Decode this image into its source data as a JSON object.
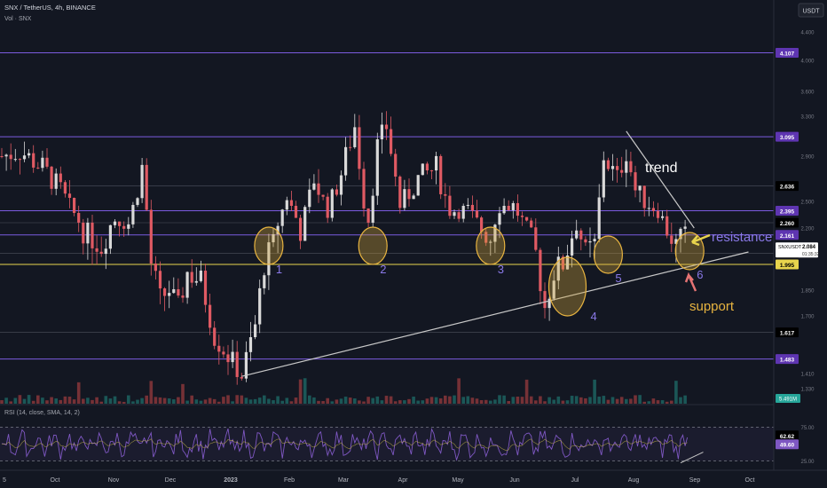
{
  "header": {
    "symbol": "SNX / TetherUS, 4h, BINANCE",
    "volume": "Vol · SNX",
    "currency": "USDT"
  },
  "colors": {
    "background": "#131722",
    "candle_up": "#d9d9d9",
    "candle_down": "#e05a63",
    "purple_line": "#7b5be0",
    "yellow_line": "#e8d44d",
    "trend_line": "#c8c8c8",
    "highlight": "#d4a73a",
    "rsi_line": "#7e57c2"
  },
  "chart_data": {
    "type": "candlestick",
    "ylim": [
      1.33,
      4.5
    ],
    "y_ticks": [
      "4.400",
      "4.000",
      "3.600",
      "3.300",
      "2.900",
      "2.500",
      "2.200",
      "1.850",
      "1.700",
      "1.410",
      "1.330"
    ],
    "x_ticks": [
      "5",
      "Oct",
      "Nov",
      "Dec",
      "2023",
      "Feb",
      "Mar",
      "Apr",
      "May",
      "Jun",
      "Jul",
      "Aug",
      "Sep",
      "Oct"
    ],
    "close_path": [
      [
        0,
        2.9
      ],
      [
        4,
        2.95
      ],
      [
        9,
        2.8
      ],
      [
        13,
        2.6
      ],
      [
        18,
        2.2
      ],
      [
        22,
        2.1
      ],
      [
        25,
        2.3
      ],
      [
        28,
        2.25
      ],
      [
        31,
        2.8
      ],
      [
        33,
        2.0
      ],
      [
        35,
        1.8
      ],
      [
        37,
        1.85
      ],
      [
        39,
        1.75
      ],
      [
        41,
        1.95
      ],
      [
        44,
        1.9
      ],
      [
        47,
        1.6
      ],
      [
        50,
        1.5
      ],
      [
        53,
        1.4
      ],
      [
        56,
        1.65
      ],
      [
        58,
        2.0
      ],
      [
        60,
        2.1
      ],
      [
        63,
        2.55
      ],
      [
        66,
        2.2
      ],
      [
        69,
        2.7
      ],
      [
        72,
        2.4
      ],
      [
        75,
        2.75
      ],
      [
        78,
        3.2
      ],
      [
        80,
        2.5
      ],
      [
        81,
        2.3
      ],
      [
        83,
        3.0
      ],
      [
        85,
        3.2
      ],
      [
        88,
        2.45
      ],
      [
        92,
        2.7
      ],
      [
        96,
        2.8
      ],
      [
        99,
        2.4
      ],
      [
        103,
        2.4
      ],
      [
        106,
        2.2
      ],
      [
        108,
        2.15
      ],
      [
        110,
        2.45
      ],
      [
        113,
        2.45
      ],
      [
        116,
        2.2
      ],
      [
        118,
        2.05
      ],
      [
        120,
        1.75
      ],
      [
        122,
        1.95
      ],
      [
        124,
        2.0
      ],
      [
        127,
        2.25
      ],
      [
        129,
        2.05
      ],
      [
        131,
        2.1
      ],
      [
        133,
        2.9
      ],
      [
        136,
        2.7
      ],
      [
        138,
        2.95
      ],
      [
        140,
        2.6
      ],
      [
        142,
        2.5
      ],
      [
        145,
        2.4
      ],
      [
        147,
        2.2
      ],
      [
        149,
        2.1
      ],
      [
        151,
        2.15
      ]
    ],
    "levels": [
      {
        "value": 4.107,
        "label": "4.107",
        "style": "purple"
      },
      {
        "value": 3.095,
        "label": "3.095",
        "style": "purple"
      },
      {
        "value": 2.636,
        "label": "2.636",
        "style": "dark"
      },
      {
        "value": 2.395,
        "label": "2.395",
        "style": "purple"
      },
      {
        "value": 2.26,
        "label": "2.260",
        "style": "dark"
      },
      {
        "value": 2.161,
        "label": "2.161",
        "style": "purple"
      },
      {
        "value": 2.057,
        "label": "2.057",
        "style": "dark"
      },
      {
        "value": 1.995,
        "label": "1.995",
        "style": "yellow"
      },
      {
        "value": 1.617,
        "label": "1.617",
        "style": "dark"
      },
      {
        "value": 1.483,
        "label": "1.483",
        "style": "purple"
      }
    ],
    "current_price": {
      "symbol": "SNXUSDT",
      "value": "2.084",
      "countdown": "01:35:32"
    },
    "volume_badge": "5.491M",
    "support_trendline": [
      [
        53,
        1.395
      ],
      [
        165,
        2.065
      ]
    ],
    "resistance_trendline": [
      [
        138,
        3.15
      ],
      [
        153,
        2.2
      ]
    ],
    "circles": [
      {
        "x": 59,
        "y": 2.1,
        "label": "1"
      },
      {
        "x": 82,
        "y": 2.1,
        "label": "2"
      },
      {
        "x": 108,
        "y": 2.1,
        "label": "3"
      },
      {
        "x": 125,
        "y": 1.87,
        "label": "4"
      },
      {
        "x": 134,
        "y": 2.05,
        "label": "5"
      },
      {
        "x": 152,
        "y": 2.07,
        "label": "6"
      }
    ],
    "annotations": {
      "trend": "trend",
      "resistance": "resistance",
      "support": "support"
    },
    "rsi": {
      "title": "RSI (14, close, SMA, 14, 2)",
      "ylim": [
        15,
        90
      ],
      "upper_band": 75,
      "lower_band": 25,
      "ticks": [
        "75.00",
        "25.00"
      ],
      "values": [
        {
          "value": 62.62,
          "label": "62.62"
        },
        {
          "value": 49.6,
          "label": "49.60"
        }
      ],
      "trendline": [
        [
          150,
          22
        ],
        [
          155,
          38
        ]
      ]
    }
  }
}
